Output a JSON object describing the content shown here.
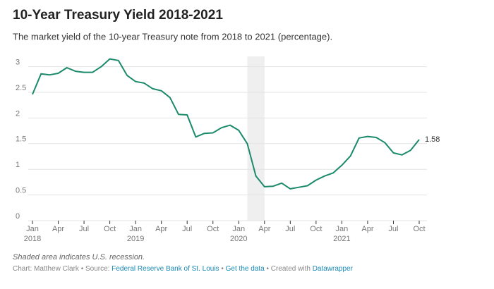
{
  "chart_data": {
    "type": "line",
    "title": "10-Year Treasury Yield 2018-2021",
    "subtitle": "The market yield of the 10-year Treasury note from 2018 to 2021 (percentage).",
    "x": [
      "2018-01",
      "2018-02",
      "2018-03",
      "2018-04",
      "2018-05",
      "2018-06",
      "2018-07",
      "2018-08",
      "2018-09",
      "2018-10",
      "2018-11",
      "2018-12",
      "2019-01",
      "2019-02",
      "2019-03",
      "2019-04",
      "2019-05",
      "2019-06",
      "2019-07",
      "2019-08",
      "2019-09",
      "2019-10",
      "2019-11",
      "2019-12",
      "2020-01",
      "2020-02",
      "2020-03",
      "2020-04",
      "2020-05",
      "2020-06",
      "2020-07",
      "2020-08",
      "2020-09",
      "2020-10",
      "2020-11",
      "2020-12",
      "2021-01",
      "2021-02",
      "2021-03",
      "2021-04",
      "2021-05",
      "2021-06",
      "2021-07",
      "2021-08",
      "2021-09",
      "2021-10"
    ],
    "series": [
      {
        "color": "#1b8a6b",
        "values": [
          2.46,
          2.86,
          2.84,
          2.87,
          2.98,
          2.91,
          2.89,
          2.89,
          3.0,
          3.15,
          3.12,
          2.83,
          2.71,
          2.68,
          2.57,
          2.53,
          2.4,
          2.07,
          2.06,
          1.63,
          1.7,
          1.71,
          1.81,
          1.86,
          1.76,
          1.5,
          0.87,
          0.66,
          0.67,
          0.73,
          0.62,
          0.65,
          0.68,
          0.79,
          0.87,
          0.93,
          1.08,
          1.26,
          1.61,
          1.64,
          1.62,
          1.52,
          1.32,
          1.28,
          1.37,
          1.58
        ]
      }
    ],
    "xlim": [
      "2018-01",
      "2021-10"
    ],
    "ylim": [
      0,
      3.2
    ],
    "yticks": [
      0,
      0.5,
      1,
      1.5,
      2,
      2.5,
      3
    ],
    "xticks": [
      {
        "value": "2018-01",
        "label": "Jan",
        "year": "2018"
      },
      {
        "value": "2018-04",
        "label": "Apr"
      },
      {
        "value": "2018-07",
        "label": "Jul"
      },
      {
        "value": "2018-10",
        "label": "Oct"
      },
      {
        "value": "2019-01",
        "label": "Jan",
        "year": "2019"
      },
      {
        "value": "2019-04",
        "label": "Apr"
      },
      {
        "value": "2019-07",
        "label": "Jul"
      },
      {
        "value": "2019-10",
        "label": "Oct"
      },
      {
        "value": "2020-01",
        "label": "Jan",
        "year": "2020"
      },
      {
        "value": "2020-04",
        "label": "Apr"
      },
      {
        "value": "2020-07",
        "label": "Jul"
      },
      {
        "value": "2020-10",
        "label": "Oct"
      },
      {
        "value": "2021-01",
        "label": "Jan",
        "year": "2021"
      },
      {
        "value": "2021-04",
        "label": "Apr"
      },
      {
        "value": "2021-07",
        "label": "Jul"
      },
      {
        "value": "2021-10",
        "label": "Oct"
      }
    ],
    "grid": true,
    "shade": [
      "2020-02",
      "2020-04"
    ],
    "note": "Shaded area indicates U.S. recession.",
    "footer": [
      {
        "text": "Chart: Matthew Clark"
      },
      {
        "text": "•"
      },
      {
        "text": "Source:"
      },
      {
        "text": "Federal Reserve Bank of St. Louis",
        "link": true
      },
      {
        "text": "•"
      },
      {
        "text": "Get the data",
        "link": true
      },
      {
        "text": "•"
      },
      {
        "text": "Created with"
      },
      {
        "text": "Datawrapper",
        "link": true
      }
    ]
  }
}
